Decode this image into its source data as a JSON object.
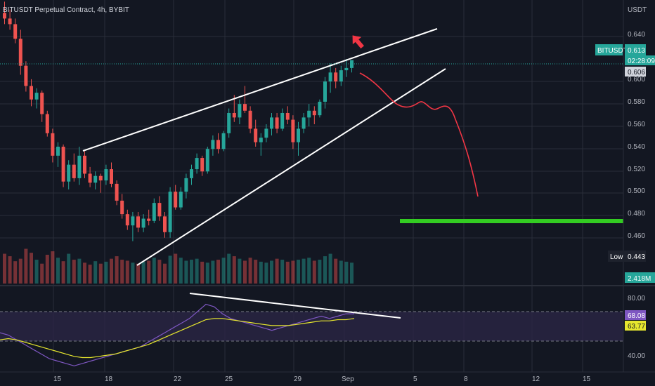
{
  "header": {
    "title": "BITUSDT Perpetual Contract, 4h, BYBIT"
  },
  "axis": {
    "currency": "USDT"
  },
  "colors": {
    "bull": "#26a69a",
    "bear": "#ef5350",
    "background": "#131722",
    "grid": "#2a2e39",
    "target_line": "#33cc22",
    "projection": "#f23645",
    "rsi": "#7e57c2",
    "rsi_ma": "#e6e62e"
  },
  "price_axis": {
    "labels": [
      "0.640",
      "0.600",
      "0.580",
      "0.560",
      "0.540",
      "0.520",
      "0.500",
      "0.480",
      "0.460"
    ]
  },
  "rsi_axis": {
    "labels": [
      "80.00",
      "40.00"
    ]
  },
  "time_axis": {
    "labels": [
      "15",
      "18",
      "22",
      "25",
      "29",
      "Sep",
      "5",
      "8",
      "12",
      "15"
    ]
  },
  "tags": {
    "symbol": "BITUSDT",
    "price": "0.613",
    "countdown": "02:28:09",
    "price2": "0.606",
    "low_label": "Low",
    "low_value": "0.443",
    "volume": "2.418M",
    "rsi_value": "68.08",
    "rsi_ma_value": "63.77"
  },
  "chart_data": {
    "type": "candlestick",
    "title": "BITUSDT Perpetual Contract, 4h, BYBIT",
    "timeframe": "4h",
    "ylim": [
      0.448,
      0.654
    ],
    "current_price": 0.613,
    "projected_target": 0.473,
    "candles": [
      [
        0.655,
        0.665,
        0.645,
        0.65
      ],
      [
        0.65,
        0.658,
        0.64,
        0.645
      ],
      [
        0.645,
        0.65,
        0.628,
        0.632
      ],
      [
        0.632,
        0.64,
        0.6,
        0.608
      ],
      [
        0.608,
        0.612,
        0.585,
        0.59
      ],
      [
        0.59,
        0.596,
        0.572,
        0.578
      ],
      [
        0.578,
        0.588,
        0.57,
        0.584
      ],
      [
        0.584,
        0.586,
        0.558,
        0.565
      ],
      [
        0.565,
        0.568,
        0.545,
        0.548
      ],
      [
        0.548,
        0.552,
        0.522,
        0.528
      ],
      [
        0.528,
        0.54,
        0.518,
        0.536
      ],
      [
        0.536,
        0.538,
        0.5,
        0.505
      ],
      [
        0.505,
        0.524,
        0.498,
        0.52
      ],
      [
        0.52,
        0.53,
        0.505,
        0.508
      ],
      [
        0.508,
        0.536,
        0.502,
        0.528
      ],
      [
        0.528,
        0.532,
        0.508,
        0.512
      ],
      [
        0.512,
        0.518,
        0.5,
        0.504
      ],
      [
        0.504,
        0.514,
        0.498,
        0.51
      ],
      [
        0.51,
        0.512,
        0.495,
        0.506
      ],
      [
        0.506,
        0.52,
        0.502,
        0.516
      ],
      [
        0.516,
        0.522,
        0.5,
        0.503
      ],
      [
        0.503,
        0.506,
        0.484,
        0.488
      ],
      [
        0.488,
        0.494,
        0.472,
        0.476
      ],
      [
        0.476,
        0.48,
        0.462,
        0.466
      ],
      [
        0.466,
        0.478,
        0.452,
        0.474
      ],
      [
        0.474,
        0.478,
        0.46,
        0.464
      ],
      [
        0.464,
        0.476,
        0.46,
        0.472
      ],
      [
        0.472,
        0.48,
        0.466,
        0.47
      ],
      [
        0.47,
        0.49,
        0.468,
        0.486
      ],
      [
        0.486,
        0.492,
        0.47,
        0.474
      ],
      [
        0.474,
        0.478,
        0.455,
        0.46
      ],
      [
        0.46,
        0.5,
        0.455,
        0.496
      ],
      [
        0.496,
        0.502,
        0.48,
        0.482
      ],
      [
        0.482,
        0.5,
        0.48,
        0.496
      ],
      [
        0.496,
        0.512,
        0.49,
        0.508
      ],
      [
        0.508,
        0.52,
        0.502,
        0.516
      ],
      [
        0.516,
        0.53,
        0.512,
        0.526
      ],
      [
        0.526,
        0.528,
        0.51,
        0.514
      ],
      [
        0.514,
        0.536,
        0.512,
        0.534
      ],
      [
        0.534,
        0.546,
        0.528,
        0.542
      ],
      [
        0.542,
        0.548,
        0.53,
        0.534
      ],
      [
        0.534,
        0.55,
        0.532,
        0.548
      ],
      [
        0.548,
        0.57,
        0.544,
        0.566
      ],
      [
        0.566,
        0.582,
        0.558,
        0.562
      ],
      [
        0.562,
        0.578,
        0.556,
        0.574
      ],
      [
        0.574,
        0.59,
        0.566,
        0.568
      ],
      [
        0.568,
        0.572,
        0.548,
        0.552
      ],
      [
        0.552,
        0.56,
        0.536,
        0.54
      ],
      [
        0.54,
        0.548,
        0.528,
        0.544
      ],
      [
        0.544,
        0.556,
        0.54,
        0.552
      ],
      [
        0.552,
        0.566,
        0.546,
        0.562
      ],
      [
        0.562,
        0.566,
        0.548,
        0.552
      ],
      [
        0.552,
        0.57,
        0.55,
        0.566
      ],
      [
        0.566,
        0.572,
        0.556,
        0.56
      ],
      [
        0.56,
        0.564,
        0.534,
        0.54
      ],
      [
        0.54,
        0.558,
        0.528,
        0.552
      ],
      [
        0.552,
        0.566,
        0.548,
        0.562
      ],
      [
        0.562,
        0.574,
        0.554,
        0.568
      ],
      [
        0.568,
        0.572,
        0.556,
        0.564
      ],
      [
        0.564,
        0.578,
        0.562,
        0.576
      ],
      [
        0.576,
        0.598,
        0.57,
        0.594
      ],
      [
        0.594,
        0.61,
        0.584,
        0.602
      ],
      [
        0.602,
        0.606,
        0.588,
        0.594
      ],
      [
        0.594,
        0.608,
        0.59,
        0.604
      ],
      [
        0.604,
        0.614,
        0.598,
        0.606
      ],
      [
        0.606,
        0.612,
        0.602,
        0.613
      ]
    ],
    "volume": [
      60,
      55,
      45,
      50,
      70,
      62,
      48,
      40,
      58,
      65,
      52,
      45,
      60,
      48,
      50,
      42,
      38,
      45,
      40,
      44,
      50,
      55,
      48,
      46,
      42,
      40,
      44,
      46,
      52,
      48,
      40,
      56,
      60,
      52,
      46,
      48,
      50,
      44,
      42,
      46,
      48,
      52,
      60,
      55,
      50,
      46,
      52,
      48,
      44,
      42,
      46,
      50,
      48,
      44,
      46,
      48,
      50,
      52,
      46,
      48,
      55,
      60,
      50,
      46,
      44,
      42
    ],
    "rsi": [
      52,
      50,
      46,
      42,
      38,
      34,
      30,
      28,
      26,
      24,
      26,
      28,
      30,
      32,
      34,
      36,
      38,
      40,
      44,
      48,
      52,
      56,
      60,
      64,
      70,
      76,
      74,
      68,
      64,
      62,
      60,
      58,
      56,
      54,
      56,
      58,
      60,
      62,
      64,
      66,
      64,
      66,
      68,
      68
    ],
    "rsi_ma": [
      46,
      47,
      46,
      44,
      42,
      40,
      38,
      36,
      34,
      32,
      31,
      31,
      32,
      33,
      34,
      36,
      38,
      40,
      42,
      45,
      48,
      51,
      54,
      57,
      60,
      63,
      64,
      64,
      63,
      62,
      61,
      60,
      59,
      58,
      58,
      58,
      59,
      60,
      61,
      62,
      62,
      63,
      63,
      64
    ]
  }
}
